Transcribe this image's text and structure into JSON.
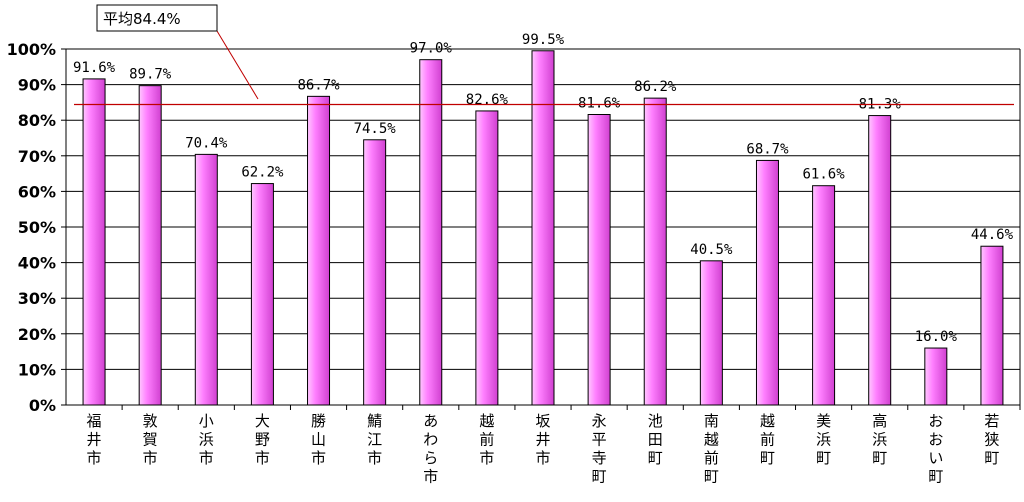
{
  "chart_data": {
    "type": "bar",
    "categories": [
      "福井市",
      "敦賀市",
      "小浜市",
      "大野市",
      "勝山市",
      "鯖江市",
      "あわら市",
      "越前市",
      "坂井市",
      "永平寺町",
      "池田町",
      "南越前町",
      "越前町",
      "美浜町",
      "高浜町",
      "おおい町",
      "若狭町"
    ],
    "values": [
      91.6,
      89.7,
      70.4,
      62.2,
      86.7,
      74.5,
      97.0,
      82.6,
      99.5,
      81.6,
      86.2,
      40.5,
      68.7,
      61.6,
      81.3,
      16.0,
      44.6
    ],
    "value_labels": [
      "91.6%",
      "89.7%",
      "70.4%",
      "62.2%",
      "86.7%",
      "74.5%",
      "97.0%",
      "82.6%",
      "99.5%",
      "81.6%",
      "86.2%",
      "40.5%",
      "68.7%",
      "61.6%",
      "81.3%",
      "16.0%",
      "44.6%"
    ],
    "ylim": [
      0,
      100
    ],
    "yticks": [
      "0%",
      "10%",
      "20%",
      "30%",
      "40%",
      "50%",
      "60%",
      "70%",
      "80%",
      "90%",
      "100%"
    ],
    "grid": true,
    "average": {
      "value": 84.4,
      "label": "平均84.4%"
    },
    "colors": {
      "bar": "#ff66ff",
      "bar_dark": "#c040c0",
      "bar_light": "#ffc8ff",
      "average_line": "#c00000",
      "grid": "#000000"
    }
  }
}
